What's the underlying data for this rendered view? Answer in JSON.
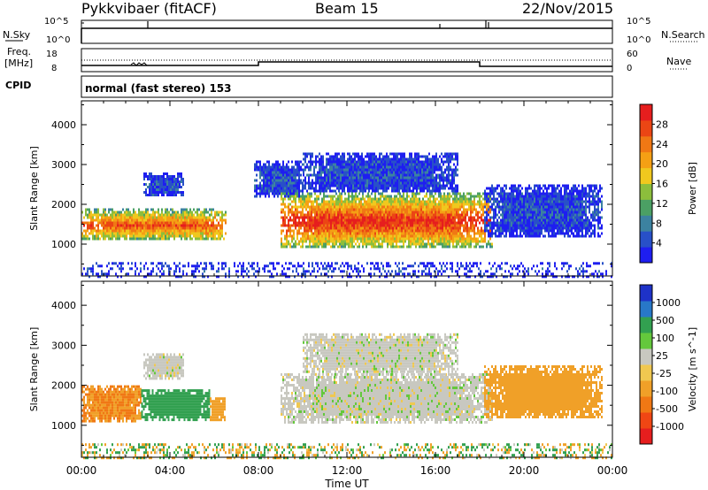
{
  "header": {
    "station": "Pykkvibaer (fitACF)",
    "beam": "Beam 15",
    "date": "22/Nov/2015"
  },
  "param_panels": {
    "nsky_label": "N.Sky",
    "nsky_ticks": [
      "10^5",
      "10^0"
    ],
    "nsearch_label": "N.Search",
    "nsearch_ticks": [
      "10^5",
      "10^0"
    ],
    "freq_label_line1": "Freq.",
    "freq_label_line2": "[MHz]",
    "freq_ticks": [
      "18",
      "8"
    ],
    "nave_label": "Nave",
    "nave_ticks": [
      "60",
      "0"
    ],
    "cpid_label": "CPID",
    "cpid_text": "normal (fast stereo) 153"
  },
  "chart_data": [
    {
      "type": "heatmap",
      "title": "",
      "xlabel": "Time UT",
      "ylabel": "Slant Range [km]",
      "x_ticks": [
        "00:00",
        "04:00",
        "08:00",
        "12:00",
        "16:00",
        "20:00",
        "00:00"
      ],
      "xlim_hours": [
        0,
        24
      ],
      "ylim": [
        200,
        4600
      ],
      "y_ticks": [
        1000,
        2000,
        3000,
        4000
      ],
      "colorbar": {
        "label": "Power [dB]",
        "ticks": [
          "4",
          "8",
          "12",
          "16",
          "20",
          "24",
          "28"
        ],
        "range": [
          0,
          30
        ],
        "colors": [
          "#1e1ef0",
          "#2850c8",
          "#3c82a0",
          "#4ba064",
          "#8cbe3c",
          "#f0c81e",
          "#f5a014",
          "#f07814",
          "#eb4614",
          "#e61e1e"
        ]
      },
      "regions": [
        {
          "t0": 0.0,
          "t1": 6.5,
          "r0": 1100,
          "r1": 1900,
          "intensity": 0.85
        },
        {
          "t0": 2.8,
          "t1": 4.6,
          "r0": 2200,
          "r1": 2800,
          "intensity": 0.15
        },
        {
          "t0": 7.8,
          "t1": 10.0,
          "r0": 2200,
          "r1": 3100,
          "intensity": 0.15
        },
        {
          "t0": 9.0,
          "t1": 18.6,
          "r0": 900,
          "r1": 2300,
          "intensity": 0.95
        },
        {
          "t0": 10.0,
          "t1": 17.0,
          "r0": 2300,
          "r1": 3300,
          "intensity": 0.15
        },
        {
          "t0": 18.2,
          "t1": 23.5,
          "r0": 1200,
          "r1": 2500,
          "intensity": 0.15
        },
        {
          "t0": 0.0,
          "t1": 24.0,
          "r0": 200,
          "r1": 550,
          "intensity": 0.1
        }
      ]
    },
    {
      "type": "heatmap",
      "title": "",
      "xlabel": "Time UT",
      "ylabel": "Slant Range [km]",
      "x_ticks": [
        "00:00",
        "04:00",
        "08:00",
        "12:00",
        "16:00",
        "20:00",
        "00:00"
      ],
      "xlim_hours": [
        0,
        24
      ],
      "ylim": [
        200,
        4600
      ],
      "y_ticks": [
        1000,
        2000,
        3000,
        4000
      ],
      "colorbar": {
        "label": "Velocity [m s^-1]",
        "ticks": [
          "1000",
          "500",
          "100",
          "25",
          "-25",
          "-100",
          "-500",
          "-1000"
        ],
        "colors": [
          "#1e32c8",
          "#2878c8",
          "#32a050",
          "#64c83c",
          "#c8c8c0",
          "#f0c850",
          "#f0a028",
          "#f07814",
          "#f04614",
          "#e61e1e"
        ]
      },
      "regions": [
        {
          "t0": 0.0,
          "t1": 2.7,
          "r0": 1100,
          "r1": 2000,
          "velocity": -300
        },
        {
          "t0": 2.7,
          "t1": 5.8,
          "r0": 1150,
          "r1": 1900,
          "velocity": 200
        },
        {
          "t0": 5.8,
          "t1": 6.5,
          "r0": 1150,
          "r1": 1700,
          "velocity": -200
        },
        {
          "t0": 2.8,
          "t1": 4.6,
          "r0": 2200,
          "r1": 2800,
          "velocity": 0
        },
        {
          "t0": 9.0,
          "t1": 18.6,
          "r0": 1100,
          "r1": 2300,
          "velocity": 0
        },
        {
          "t0": 10.0,
          "t1": 17.0,
          "r0": 2300,
          "r1": 3300,
          "velocity": 0
        },
        {
          "t0": 18.2,
          "t1": 23.5,
          "r0": 1200,
          "r1": 2500,
          "velocity": -200
        },
        {
          "t0": 0.0,
          "t1": 24.0,
          "r0": 200,
          "r1": 550,
          "velocity": -100
        }
      ]
    }
  ]
}
